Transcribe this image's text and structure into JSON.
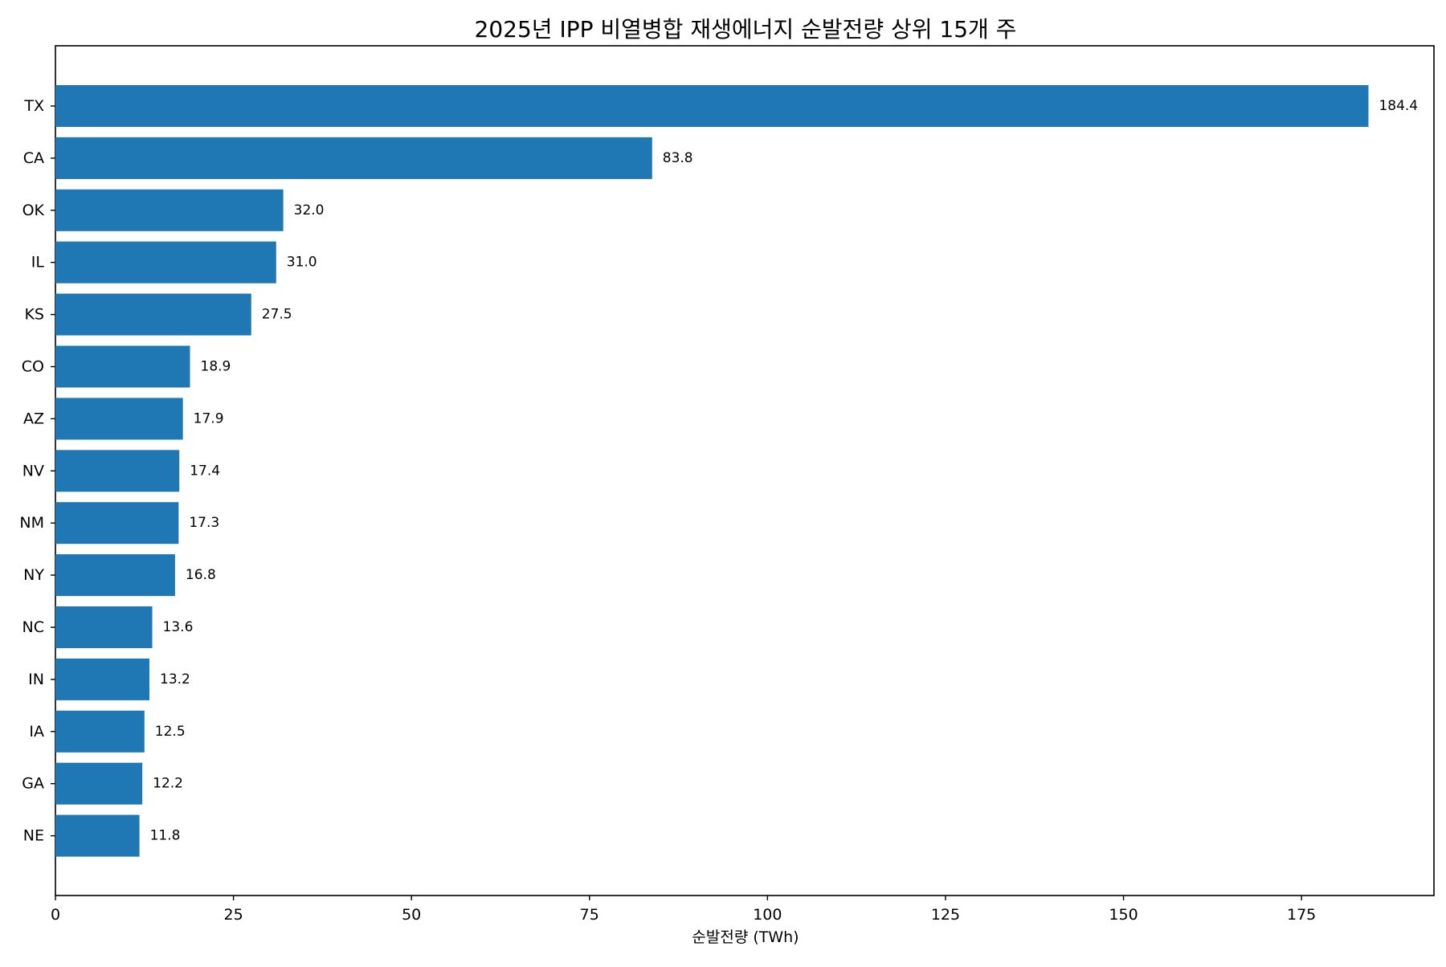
{
  "chart_data": {
    "type": "bar",
    "orientation": "horizontal",
    "title": "2025년 IPP 비열병합 재생에너지 순발전량 상위 15개 주",
    "xlabel": "순발전량 (TWh)",
    "ylabel": "",
    "xlim": [
      0,
      193.6
    ],
    "xticks": [
      "0",
      "25",
      "50",
      "75",
      "100",
      "125",
      "150",
      "175"
    ],
    "xtick_values": [
      0,
      25,
      50,
      75,
      100,
      125,
      150,
      175
    ],
    "categories": [
      "TX",
      "CA",
      "OK",
      "IL",
      "KS",
      "CO",
      "AZ",
      "NV",
      "NM",
      "NY",
      "NC",
      "IN",
      "IA",
      "GA",
      "NE"
    ],
    "values": [
      184.4,
      83.8,
      32.0,
      31.0,
      27.5,
      18.9,
      17.9,
      17.4,
      17.3,
      16.8,
      13.6,
      13.2,
      12.5,
      12.2,
      11.8
    ],
    "data_labels": [
      "184.4",
      "83.8",
      "32.0",
      "31.0",
      "27.5",
      "18.9",
      "17.9",
      "17.4",
      "17.3",
      "16.8",
      "13.6",
      "13.2",
      "12.5",
      "12.2",
      "11.8"
    ],
    "bar_color": "#1f77b4",
    "grid": false,
    "legend": "none"
  }
}
